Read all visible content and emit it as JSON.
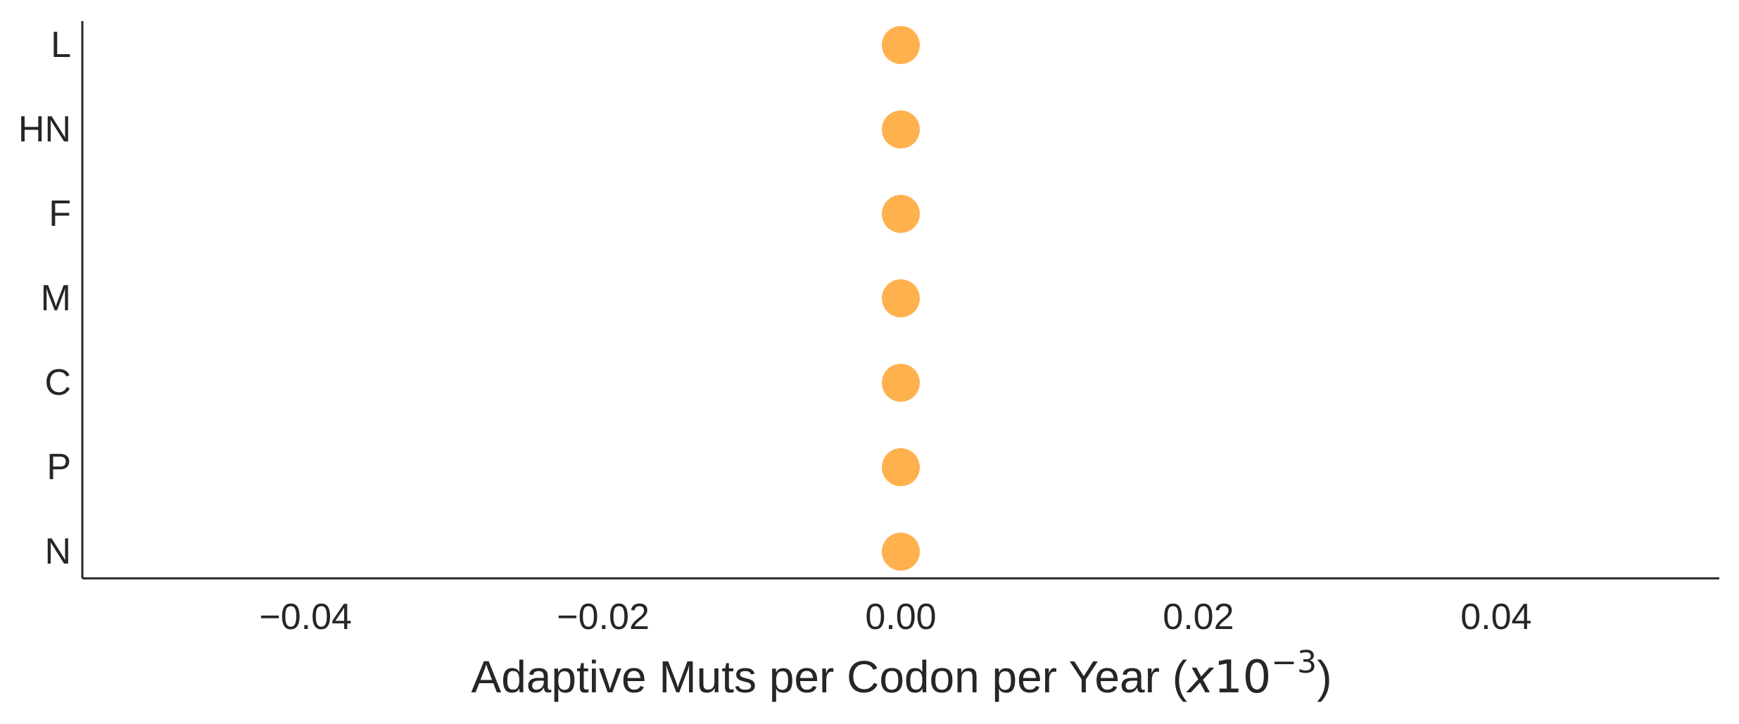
{
  "chart_data": {
    "type": "scatter",
    "orientation": "horizontal",
    "categories": [
      "N",
      "P",
      "C",
      "M",
      "F",
      "HN",
      "L"
    ],
    "values": [
      0.0,
      0.0,
      0.0,
      0.0,
      0.0,
      0.0,
      0.0
    ],
    "xlim": [
      -0.055,
      0.055
    ],
    "xticks": [
      -0.04,
      -0.02,
      0.0,
      0.02,
      0.04
    ],
    "xtick_labels": [
      "−0.04",
      "−0.02",
      "0.00",
      "0.02",
      "0.04"
    ],
    "xlabel": {
      "text": "Adaptive Muts per Codon per Year (",
      "math_var": "x",
      "math_base": "10",
      "math_exp": "−3",
      "close": ")"
    },
    "title": "",
    "grid": false,
    "marker_color": "#ffb14e"
  }
}
